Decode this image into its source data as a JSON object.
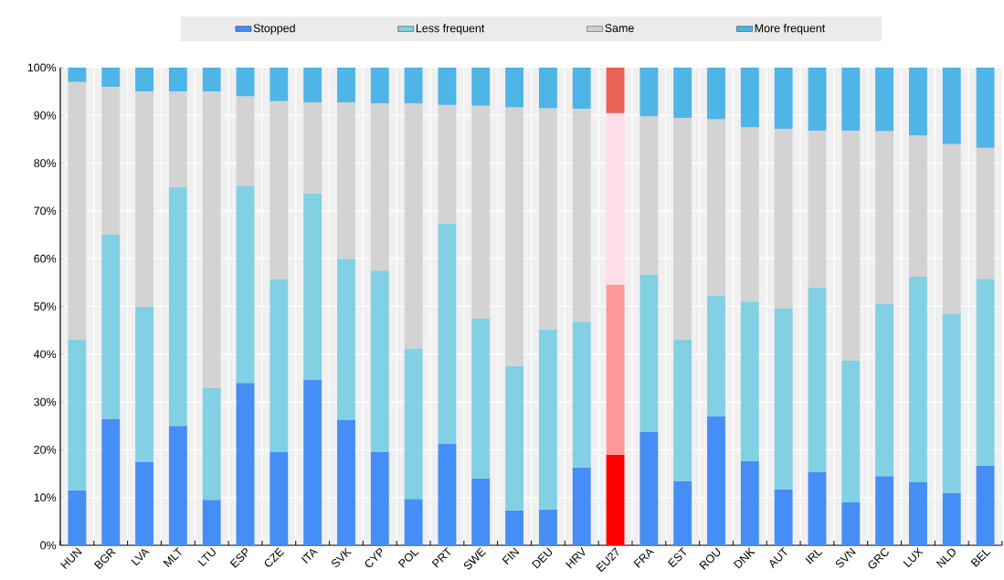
{
  "chart_data": {
    "type": "bar",
    "stacked": true,
    "categories": [
      "HUN",
      "BGR",
      "LVA",
      "MLT",
      "LTU",
      "ESP",
      "CZE",
      "ITA",
      "SVK",
      "CYP",
      "POL",
      "PRT",
      "SWE",
      "FIN",
      "DEU",
      "HRV",
      "EU27",
      "FRA",
      "EST",
      "ROU",
      "DNK",
      "AUT",
      "IRL",
      "SVN",
      "GRC",
      "LUX",
      "NLD",
      "BEL"
    ],
    "series": [
      {
        "name": "Stopped",
        "color": "#458ef5",
        "colors": [
          "#458ef5",
          "#458ef5",
          "#458ef5",
          "#458ef5",
          "#458ef5",
          "#458ef5",
          "#458ef5",
          "#458ef5",
          "#458ef5",
          "#458ef5",
          "#458ef5",
          "#458ef5",
          "#458ef5",
          "#458ef5",
          "#458ef5",
          "#458ef5",
          "#ff0000",
          "#458ef5",
          "#458ef5",
          "#458ef5",
          "#458ef5",
          "#458ef5",
          "#458ef5",
          "#458ef5",
          "#458ef5",
          "#458ef5",
          "#458ef5",
          "#458ef5"
        ],
        "values": [
          11.5,
          26.5,
          17.5,
          25,
          9.5,
          34,
          19.5,
          34.7,
          26.3,
          19.5,
          9.7,
          21.2,
          14,
          7.3,
          7.5,
          16.3,
          19,
          23.7,
          13.5,
          27,
          17.6,
          11.7,
          15.3,
          9,
          14.5,
          13.2,
          11,
          16.7
        ]
      },
      {
        "name": "Less frequent",
        "color": "#82d0e3",
        "colors": [
          "#82d0e3",
          "#82d0e3",
          "#82d0e3",
          "#82d0e3",
          "#82d0e3",
          "#82d0e3",
          "#82d0e3",
          "#82d0e3",
          "#82d0e3",
          "#82d0e3",
          "#82d0e3",
          "#82d0e3",
          "#82d0e3",
          "#82d0e3",
          "#82d0e3",
          "#82d0e3",
          "#ff9999",
          "#82d0e3",
          "#82d0e3",
          "#82d0e3",
          "#82d0e3",
          "#82d0e3",
          "#82d0e3",
          "#82d0e3",
          "#82d0e3",
          "#82d0e3",
          "#82d0e3",
          "#82d0e3"
        ],
        "values": [
          31.5,
          38.5,
          32.5,
          50,
          23.5,
          41.3,
          36.2,
          38.9,
          33.7,
          38,
          31.5,
          46.2,
          33.5,
          30.2,
          37.7,
          30.5,
          35.6,
          33,
          29.5,
          25.2,
          33.4,
          37.8,
          38.7,
          29.7,
          36,
          43,
          37.5,
          39.1
        ]
      },
      {
        "name": "Same",
        "color": "#d3d3d3",
        "colors": [
          "#d3d3d3",
          "#d3d3d3",
          "#d3d3d3",
          "#d3d3d3",
          "#d3d3d3",
          "#d3d3d3",
          "#d3d3d3",
          "#d3d3d3",
          "#d3d3d3",
          "#d3d3d3",
          "#d3d3d3",
          "#d3d3d3",
          "#d3d3d3",
          "#d3d3d3",
          "#d3d3d3",
          "#d3d3d3",
          "#fddde8",
          "#d3d3d3",
          "#d3d3d3",
          "#d3d3d3",
          "#d3d3d3",
          "#d3d3d3",
          "#d3d3d3",
          "#d3d3d3",
          "#d3d3d3",
          "#d3d3d3",
          "#d3d3d3",
          "#d3d3d3"
        ],
        "values": [
          54,
          31,
          45,
          20,
          62,
          18.7,
          37.3,
          19.1,
          32.7,
          35,
          51.3,
          24.8,
          44.5,
          54.2,
          46.3,
          44.6,
          35.9,
          33.1,
          46.5,
          37,
          36.5,
          37.7,
          32.8,
          48.1,
          36.2,
          29.6,
          35.5,
          27.4
        ]
      },
      {
        "name": "More frequent",
        "color": "#4fb4e6",
        "colors": [
          "#4fb4e6",
          "#4fb4e6",
          "#4fb4e6",
          "#4fb4e6",
          "#4fb4e6",
          "#4fb4e6",
          "#4fb4e6",
          "#4fb4e6",
          "#4fb4e6",
          "#4fb4e6",
          "#4fb4e6",
          "#4fb4e6",
          "#4fb4e6",
          "#4fb4e6",
          "#4fb4e6",
          "#4fb4e6",
          "#e86356",
          "#4fb4e6",
          "#4fb4e6",
          "#4fb4e6",
          "#4fb4e6",
          "#4fb4e6",
          "#4fb4e6",
          "#4fb4e6",
          "#4fb4e6",
          "#4fb4e6",
          "#4fb4e6",
          "#4fb4e6"
        ],
        "values": [
          3,
          4,
          5,
          5,
          5,
          6,
          7,
          7.3,
          7.3,
          7.5,
          7.5,
          7.8,
          8,
          8.3,
          8.5,
          8.6,
          9.5,
          10.2,
          10.5,
          10.8,
          12.5,
          12.8,
          13.2,
          13.2,
          13.3,
          14.2,
          16,
          16.8
        ]
      }
    ],
    "ylim": [
      0,
      100
    ],
    "yticks": [
      {
        "value": 0,
        "label": "0%"
      },
      {
        "value": 10,
        "label": "10%"
      },
      {
        "value": 20,
        "label": "20%"
      },
      {
        "value": 30,
        "label": "30%"
      },
      {
        "value": 40,
        "label": "40%"
      },
      {
        "value": 50,
        "label": "50%"
      },
      {
        "value": 60,
        "label": "60%"
      },
      {
        "value": 70,
        "label": "70%"
      },
      {
        "value": 80,
        "label": "80%"
      },
      {
        "value": 90,
        "label": "90%"
      },
      {
        "value": 100,
        "label": "100%"
      }
    ],
    "grid": true,
    "legend": "top"
  }
}
